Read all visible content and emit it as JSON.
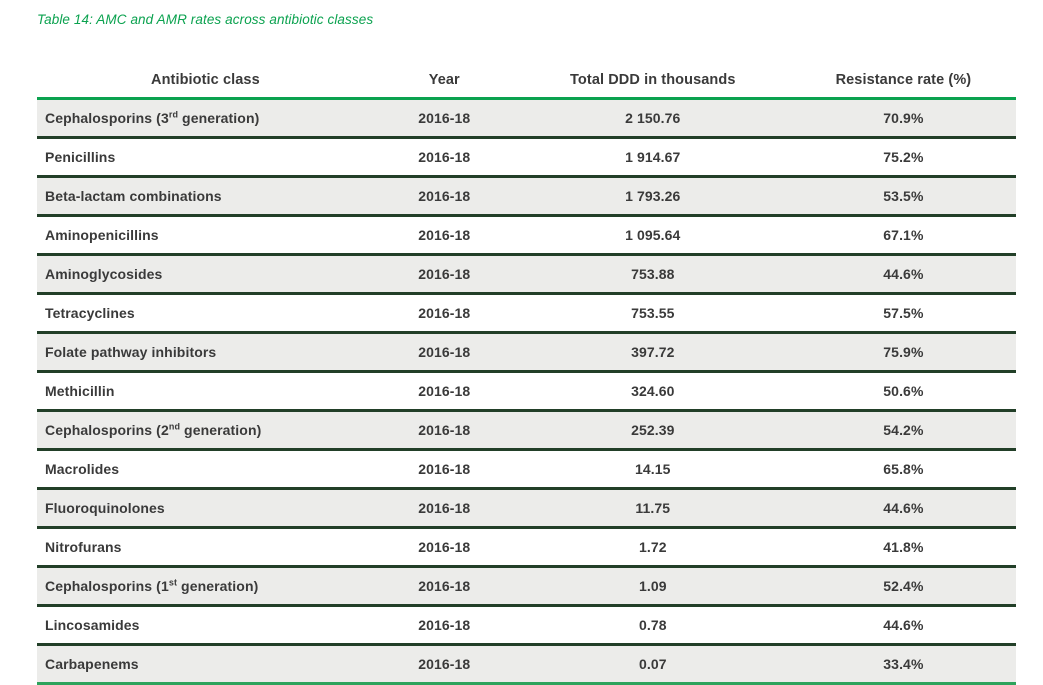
{
  "caption": "Table 14: AMC and AMR rates across antibiotic classes",
  "colors": {
    "caption_green": "#0ba24f",
    "header_rule_green": "#0ba24f",
    "bottom_rule_green": "#2da35c",
    "row_separator_dark_green": "#223f28",
    "row_alt_background": "#ececea",
    "text": "#3a3a3a"
  },
  "table": {
    "headers": [
      "Antibiotic class",
      "Year",
      "Total DDD in thousands",
      "Resistance rate (%)"
    ],
    "rows": [
      {
        "name_pre": "Cephalosporins (3",
        "name_sup": "rd",
        "name_post": " generation)",
        "year": "2016-18",
        "ddd": "2 150.76",
        "rate": "70.9%"
      },
      {
        "name_pre": "Penicillins",
        "name_sup": "",
        "name_post": "",
        "year": "2016-18",
        "ddd": "1 914.67",
        "rate": "75.2%"
      },
      {
        "name_pre": "Beta-lactam combinations",
        "name_sup": "",
        "name_post": "",
        "year": "2016-18",
        "ddd": "1 793.26",
        "rate": "53.5%"
      },
      {
        "name_pre": "Aminopenicillins",
        "name_sup": "",
        "name_post": "",
        "year": "2016-18",
        "ddd": "1 095.64",
        "rate": "67.1%"
      },
      {
        "name_pre": "Aminoglycosides",
        "name_sup": "",
        "name_post": "",
        "year": "2016-18",
        "ddd": "753.88",
        "rate": "44.6%"
      },
      {
        "name_pre": "Tetracyclines",
        "name_sup": "",
        "name_post": "",
        "year": "2016-18",
        "ddd": "753.55",
        "rate": "57.5%"
      },
      {
        "name_pre": "Folate pathway inhibitors",
        "name_sup": "",
        "name_post": "",
        "year": "2016-18",
        "ddd": "397.72",
        "rate": "75.9%"
      },
      {
        "name_pre": "Methicillin",
        "name_sup": "",
        "name_post": "",
        "year": "2016-18",
        "ddd": "324.60",
        "rate": "50.6%"
      },
      {
        "name_pre": "Cephalosporins (2",
        "name_sup": "nd",
        "name_post": " generation)",
        "year": "2016-18",
        "ddd": "252.39",
        "rate": "54.2%"
      },
      {
        "name_pre": "Macrolides",
        "name_sup": "",
        "name_post": "",
        "year": "2016-18",
        "ddd": "14.15",
        "rate": "65.8%"
      },
      {
        "name_pre": "Fluoroquinolones",
        "name_sup": "",
        "name_post": "",
        "year": "2016-18",
        "ddd": "11.75",
        "rate": "44.6%"
      },
      {
        "name_pre": "Nitrofurans",
        "name_sup": "",
        "name_post": "",
        "year": "2016-18",
        "ddd": "1.72",
        "rate": "41.8%"
      },
      {
        "name_pre": "Cephalosporins (1",
        "name_sup": "st",
        "name_post": " generation)",
        "year": "2016-18",
        "ddd": "1.09",
        "rate": "52.4%"
      },
      {
        "name_pre": "Lincosamides",
        "name_sup": "",
        "name_post": "",
        "year": "2016-18",
        "ddd": "0.78",
        "rate": "44.6%"
      },
      {
        "name_pre": "Carbapenems",
        "name_sup": "",
        "name_post": "",
        "year": "2016-18",
        "ddd": "0.07",
        "rate": "33.4%"
      }
    ]
  }
}
